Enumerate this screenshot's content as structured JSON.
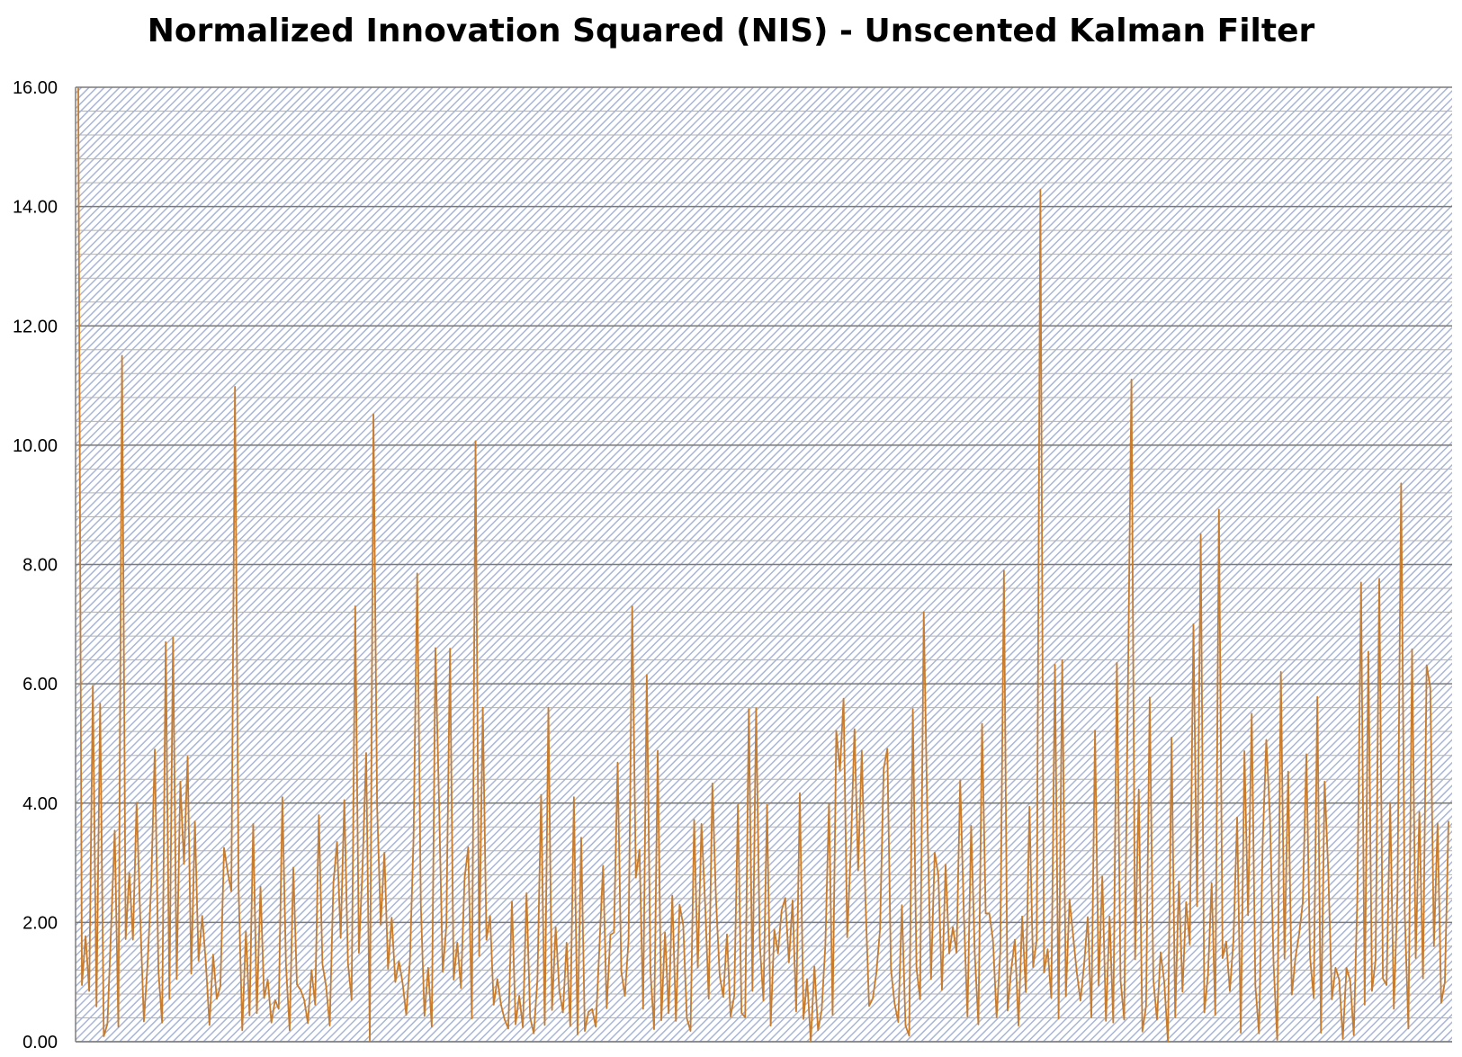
{
  "chart_data": {
    "type": "line",
    "title": "Normalized Innovation Squared (NIS) - Unscented Kalman Filter",
    "xlabel": "",
    "ylabel": "",
    "ylim": [
      0,
      16
    ],
    "yticks": [
      "0.00",
      "2.00",
      "4.00",
      "6.00",
      "8.00",
      "10.00",
      "12.00",
      "14.00",
      "16.00"
    ],
    "grid": true,
    "legend": "none",
    "line_color": "#c77c2e",
    "series": [
      {
        "values": [
          16.0,
          0.95,
          1.77,
          0.85,
          5.97,
          0.59,
          5.67,
          0.09,
          0.3,
          1.9,
          3.54,
          0.25,
          11.5,
          1.72,
          2.83,
          1.71,
          4.01,
          2.09,
          0.34,
          1.29,
          2.61,
          4.9,
          1.18,
          0.32,
          6.7,
          0.72,
          6.78,
          1.05,
          4.36,
          2.98,
          4.78,
          1.14,
          3.69,
          1.36,
          2.11,
          1.33,
          0.28,
          1.46,
          0.72,
          0.93,
          3.25,
          2.85,
          2.52,
          10.98,
          2.55,
          0.19,
          1.85,
          0.44,
          3.65,
          0.48,
          2.6,
          0.73,
          1.04,
          0.32,
          0.7,
          0.55,
          4.1,
          1.27,
          0.19,
          2.92,
          0.96,
          0.87,
          0.7,
          0.31,
          1.2,
          0.62,
          3.8,
          1.3,
          0.93,
          0.27,
          2.65,
          3.35,
          1.74,
          4.05,
          1.32,
          0.7,
          7.3,
          1.49,
          2.92,
          4.84,
          0.02,
          10.52,
          3.95,
          1.96,
          3.17,
          1.22,
          2.08,
          1.0,
          1.35,
          0.98,
          0.45,
          1.35,
          3.42,
          7.85,
          2.29,
          0.43,
          1.24,
          0.25,
          6.6,
          4.0,
          1.17,
          1.93,
          6.59,
          1.04,
          1.66,
          0.9,
          2.74,
          3.26,
          0.39,
          10.07,
          1.44,
          5.6,
          1.71,
          2.11,
          0.62,
          1.05,
          0.62,
          0.37,
          0.22,
          2.35,
          0.29,
          0.77,
          0.24,
          2.49,
          0.4,
          0.14,
          1.05,
          4.14,
          0.28,
          5.6,
          0.53,
          1.92,
          0.86,
          0.49,
          1.66,
          0.26,
          4.1,
          0.12,
          3.42,
          0.18,
          0.5,
          0.55,
          0.25,
          1.58,
          2.95,
          0.56,
          1.79,
          1.83,
          4.68,
          1.18,
          0.77,
          1.71,
          7.3,
          2.75,
          3.22,
          0.55,
          6.15,
          1.18,
          0.21,
          4.88,
          0.36,
          1.83,
          0.48,
          2.45,
          0.35,
          2.3,
          1.95,
          0.39,
          0.18,
          3.72,
          1.24,
          3.65,
          2.33,
          0.72,
          4.33,
          2.38,
          1.11,
          0.75,
          1.8,
          0.42,
          0.77,
          3.97,
          0.48,
          0.41,
          5.58,
          0.85,
          5.59,
          1.65,
          0.69,
          3.97,
          0.27,
          1.88,
          1.48,
          2.2,
          2.41,
          1.33,
          2.37,
          0.51,
          4.17,
          0.38,
          1.05,
          0.0,
          1.26,
          0.19,
          0.53,
          1.62,
          3.99,
          0.45,
          5.21,
          4.54,
          5.75,
          1.75,
          3.23,
          5.24,
          2.87,
          4.88,
          2.38,
          0.6,
          0.72,
          1.15,
          1.88,
          4.57,
          4.91,
          1.22,
          0.64,
          0.33,
          2.29,
          0.27,
          0.1,
          5.58,
          1.24,
          0.71,
          7.2,
          3.73,
          1.05,
          3.17,
          2.8,
          0.87,
          2.97,
          1.48,
          1.92,
          1.49,
          4.38,
          2.15,
          0.42,
          3.62,
          1.48,
          0.29,
          5.33,
          2.15,
          2.15,
          1.7,
          0.41,
          1.5,
          7.9,
          0.52,
          1.21,
          1.71,
          0.27,
          2.1,
          0.83,
          3.94,
          1.25,
          1.7,
          14.28,
          1.16,
          1.55,
          0.73,
          6.32,
          0.39,
          6.4,
          0.76,
          2.38,
          1.77,
          1.16,
          0.69,
          1.29,
          2.09,
          0.41,
          5.22,
          0.94,
          2.77,
          0.35,
          2.1,
          0.32,
          6.35,
          1.03,
          0.37,
          5.79,
          11.1,
          1.38,
          4.23,
          0.17,
          0.59,
          5.77,
          1.04,
          0.37,
          1.5,
          1.0,
          0.0,
          5.1,
          0.41,
          2.69,
          0.84,
          2.34,
          1.63,
          7.0,
          2.27,
          8.51,
          0.49,
          1.12,
          2.66,
          0.45,
          8.92,
          1.4,
          1.68,
          0.85,
          1.72,
          3.76,
          0.15,
          4.87,
          2.12,
          5.5,
          0.94,
          0.14,
          3.31,
          5.06,
          3.77,
          1.3,
          0.03,
          6.2,
          1.39,
          4.53,
          0.79,
          1.41,
          1.8,
          2.33,
          4.82,
          1.42,
          0.73,
          5.78,
          0.15,
          4.36,
          2.86,
          0.71,
          1.24,
          1.04,
          0.05,
          1.24,
          1.03,
          0.11,
          2.47,
          7.7,
          0.62,
          6.54,
          0.85,
          1.37,
          7.76,
          1.06,
          0.95,
          4.0,
          0.55,
          2.48,
          9.36,
          2.14,
          0.22,
          6.58,
          1.4,
          3.85,
          1.06,
          6.31,
          5.94,
          1.6,
          3.66,
          0.65,
          1.0,
          3.7
        ]
      }
    ]
  }
}
